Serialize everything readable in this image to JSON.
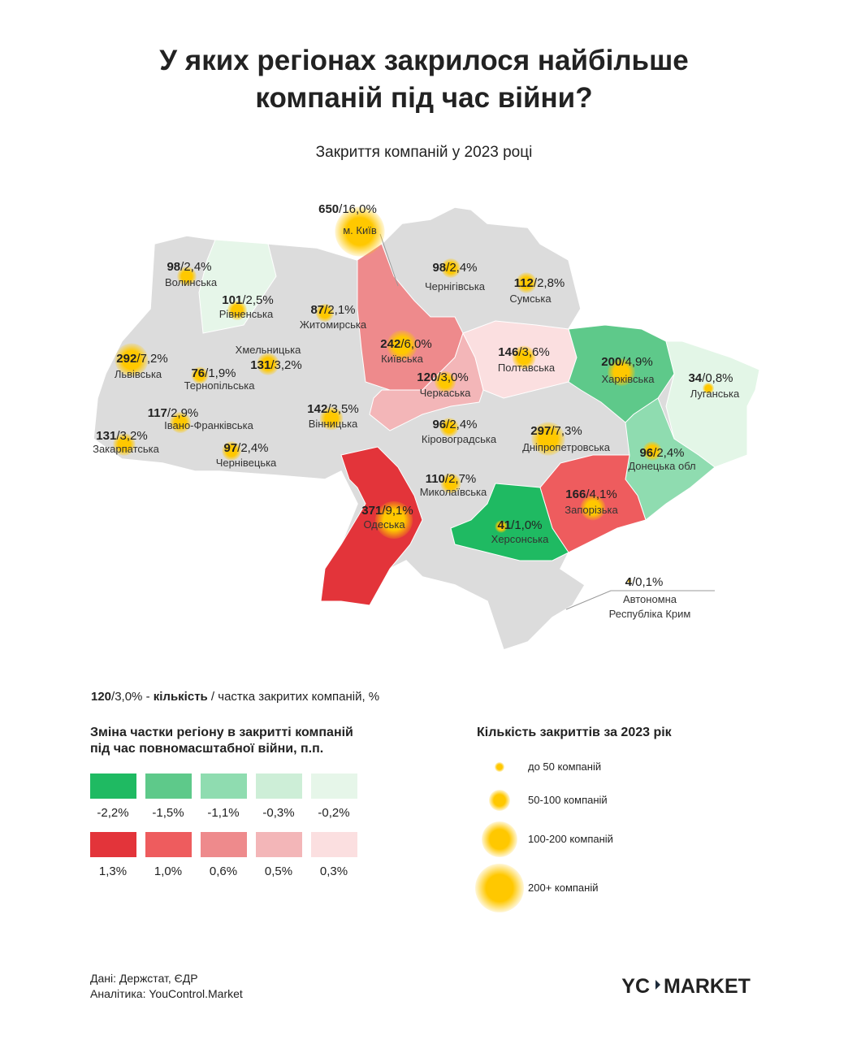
{
  "header": {
    "title": [
      "У яких регіонах закрилося найбільше",
      "компаній під час війни?"
    ],
    "subtitle": "Закриття компаній у 2023 році"
  },
  "separator": "/",
  "regions": [
    {
      "name": [
        "м. Київ"
      ],
      "count": 650,
      "share": "16,0%",
      "color": null
    },
    {
      "name": [
        "Волинська"
      ],
      "count": 98,
      "share": "2,4%",
      "color": null
    },
    {
      "name": [
        "Рівненська"
      ],
      "count": 101,
      "share": "2,5%",
      "color": "#e6f6e9"
    },
    {
      "name": [
        "Житомирська"
      ],
      "count": 87,
      "share": "2,1%",
      "color": null
    },
    {
      "name": [
        "Київська"
      ],
      "count": 242,
      "share": "6,0%",
      "color": "#ee8a8c"
    },
    {
      "name": [
        "Чернігівська"
      ],
      "count": 98,
      "share": "2,4%",
      "color": null
    },
    {
      "name": [
        "Сумська"
      ],
      "count": 112,
      "share": "2,8%",
      "color": null
    },
    {
      "name": [
        "Львівська"
      ],
      "count": 292,
      "share": "7,2%",
      "color": null
    },
    {
      "name": [
        "Тернопільська"
      ],
      "count": 76,
      "share": "1,9%",
      "color": null
    },
    {
      "name": [
        "Хмельницька"
      ],
      "count": 131,
      "share": "3,2%",
      "color": null
    },
    {
      "name": [
        "Черкаська"
      ],
      "count": 120,
      "share": "3,0%",
      "color": "#f3b6b8"
    },
    {
      "name": [
        "Полтавська"
      ],
      "count": 146,
      "share": "3,6%",
      "color": "#fbdfe0"
    },
    {
      "name": [
        "Харківська"
      ],
      "count": 200,
      "share": "4,9%",
      "color": "#5ec98a"
    },
    {
      "name": [
        "Луганська"
      ],
      "count": 34,
      "share": "0,8%",
      "color": "#e3f6e7"
    },
    {
      "name": [
        "Закарпатська"
      ],
      "count": 131,
      "share": "3,2%",
      "color": null
    },
    {
      "name": [
        "Івано-Франківська"
      ],
      "count": 117,
      "share": "2,9%",
      "color": null
    },
    {
      "name": [
        "Чернівецька"
      ],
      "count": 97,
      "share": "2,4%",
      "color": null
    },
    {
      "name": [
        "Вінницька"
      ],
      "count": 142,
      "share": "3,5%",
      "color": null
    },
    {
      "name": [
        "Кіровоградська"
      ],
      "count": 96,
      "share": "2,4%",
      "color": null
    },
    {
      "name": [
        "Дніпропетровська"
      ],
      "count": 297,
      "share": "7,3%",
      "color": null
    },
    {
      "name": [
        "Донецька обл"
      ],
      "count": 96,
      "share": "2,4%",
      "color": "#8fdcb0"
    },
    {
      "name": [
        "Миколаївська"
      ],
      "count": 110,
      "share": "2,7%",
      "color": null
    },
    {
      "name": [
        "Одеська"
      ],
      "count": 371,
      "share": "9,1%",
      "color": "#e3343a"
    },
    {
      "name": [
        "Запорізька"
      ],
      "count": 166,
      "share": "4,1%",
      "color": "#ee5c5e"
    },
    {
      "name": [
        "Херсонська"
      ],
      "count": 41,
      "share": "1,0%",
      "color": "#1fba62"
    },
    {
      "name": [
        "Автономна",
        "Республіка Крим"
      ],
      "count": 4,
      "share": "0,1%",
      "color": null
    }
  ],
  "example_note": {
    "count": 120,
    "share": "3,0%",
    "dash": " - ",
    "bold": "кількість",
    "rest": " / частка закритих компаній, %"
  },
  "legend_change": {
    "title": [
      "Зміна частки регіону в закритті компаній",
      "під час повномасштабної війни, п.п."
    ],
    "rows": [
      [
        {
          "label": "-2,2%",
          "color": "#1fba62"
        },
        {
          "label": "-1,5%",
          "color": "#5ec98a"
        },
        {
          "label": "-1,1%",
          "color": "#8fdcb0"
        },
        {
          "label": "-0,3%",
          "color": "#cdeed7"
        },
        {
          "label": "-0,2%",
          "color": "#e6f6e9"
        }
      ],
      [
        {
          "label": "1,3%",
          "color": "#e3343a"
        },
        {
          "label": "1,0%",
          "color": "#ee5c5e"
        },
        {
          "label": "0,6%",
          "color": "#ee8a8c"
        },
        {
          "label": "0,5%",
          "color": "#f3b6b8"
        },
        {
          "label": "0,3%",
          "color": "#fbdfe0"
        }
      ]
    ]
  },
  "legend_size": {
    "title": "Кількість закриттів за 2023 рік",
    "items": [
      "до 50 компаній",
      "50-100 компаній",
      "100-200 компаній",
      "200+ компаній"
    ]
  },
  "footer": {
    "source": "Дані: Держстат, ЄДР",
    "analytics": "Аналітика: YouControl.Market",
    "logo": {
      "left": "YC",
      "right": "MARKET"
    }
  }
}
